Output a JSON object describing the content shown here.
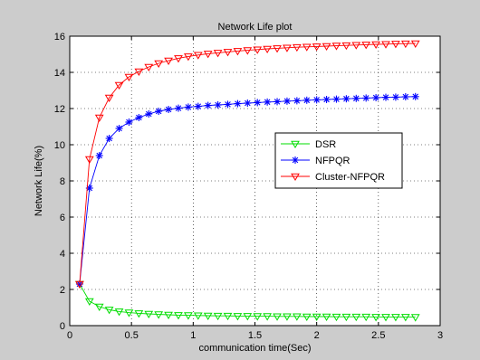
{
  "chart_data": {
    "type": "line",
    "title": "Network Life plot",
    "xlabel": "communication time(Sec)",
    "ylabel": "Network Life(%)",
    "xlim": [
      0,
      3
    ],
    "ylim": [
      0,
      16
    ],
    "xticks": [
      0,
      0.5,
      1,
      1.5,
      2,
      2.5,
      3
    ],
    "yticks": [
      0,
      2,
      4,
      6,
      8,
      10,
      12,
      14,
      16
    ],
    "xtick_labels": [
      "0",
      "0.5",
      "1",
      "1.5",
      "2",
      "2.5",
      "3"
    ],
    "ytick_labels": [
      "0",
      "2",
      "4",
      "6",
      "8",
      "10",
      "12",
      "14",
      "16"
    ],
    "grid": true,
    "legend_position": "center-right",
    "x": [
      0.08,
      0.16,
      0.24,
      0.32,
      0.4,
      0.48,
      0.56,
      0.64,
      0.72,
      0.8,
      0.88,
      0.96,
      1.04,
      1.12,
      1.2,
      1.28,
      1.36,
      1.44,
      1.52,
      1.6,
      1.68,
      1.76,
      1.84,
      1.92,
      2.0,
      2.08,
      2.16,
      2.24,
      2.32,
      2.4,
      2.48,
      2.56,
      2.64,
      2.72,
      2.8
    ],
    "series": [
      {
        "name": "DSR",
        "color": "#00dd00",
        "marker": "triangle-down",
        "values": [
          2.3,
          1.35,
          1.05,
          0.88,
          0.78,
          0.72,
          0.68,
          0.65,
          0.62,
          0.6,
          0.58,
          0.57,
          0.56,
          0.55,
          0.54,
          0.54,
          0.53,
          0.53,
          0.52,
          0.52,
          0.51,
          0.51,
          0.51,
          0.5,
          0.5,
          0.5,
          0.49,
          0.49,
          0.49,
          0.49,
          0.48,
          0.48,
          0.48,
          0.48,
          0.47
        ]
      },
      {
        "name": "NFPQR",
        "color": "#0000ff",
        "marker": "star",
        "values": [
          2.3,
          7.6,
          9.4,
          10.35,
          10.9,
          11.25,
          11.5,
          11.7,
          11.85,
          11.95,
          12.02,
          12.08,
          12.12,
          12.17,
          12.2,
          12.23,
          12.27,
          12.3,
          12.33,
          12.36,
          12.38,
          12.41,
          12.43,
          12.46,
          12.48,
          12.5,
          12.52,
          12.54,
          12.56,
          12.58,
          12.6,
          12.62,
          12.63,
          12.65,
          12.66
        ]
      },
      {
        "name": "Cluster-NFPQR",
        "color": "#ff0000",
        "marker": "triangle-down",
        "values": [
          2.3,
          9.2,
          11.5,
          12.6,
          13.3,
          13.75,
          14.05,
          14.3,
          14.5,
          14.65,
          14.78,
          14.88,
          14.96,
          15.03,
          15.08,
          15.13,
          15.18,
          15.22,
          15.26,
          15.3,
          15.33,
          15.36,
          15.39,
          15.41,
          15.43,
          15.45,
          15.47,
          15.49,
          15.51,
          15.53,
          15.55,
          15.56,
          15.58,
          15.59,
          15.6
        ]
      }
    ]
  }
}
